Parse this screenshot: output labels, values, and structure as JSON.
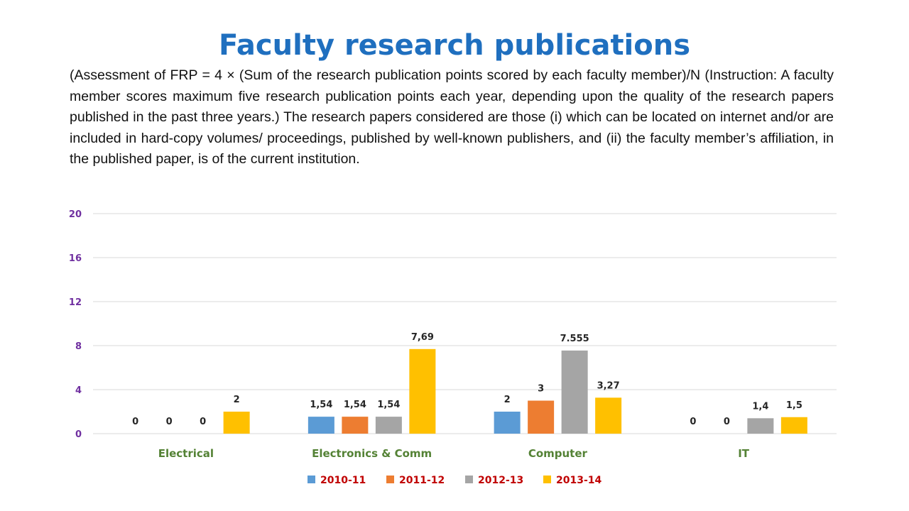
{
  "slide": {
    "title": "Faculty research publications",
    "description": "(Assessment of FRP = 4 × (Sum of the research publication points scored by each faculty member)/N (Instruction: A faculty member scores maximum five research publication points each year, depending upon the quality of the research papers published in the past three years.) The research papers considered are those (i) which can be located on internet and/or are included in hard-copy volumes/ proceedings, published by well-known publishers, and (ii) the faculty member’s affiliation, in the published paper, is of the current institution."
  },
  "chart_data": {
    "type": "bar",
    "title": "",
    "xlabel": "",
    "ylabel": "",
    "ylim": [
      0,
      20
    ],
    "yticks": [
      "0",
      "4",
      "8",
      "12",
      "16",
      "20"
    ],
    "grid": true,
    "legend_position": "bottom",
    "categories": [
      "Electrical",
      "Electronics & Comm",
      "Computer",
      "IT"
    ],
    "series": [
      {
        "name": "2010-11",
        "color": "#5b9bd5",
        "values": [
          0,
          1.54,
          2,
          0
        ],
        "labels": [
          "0",
          "1,54",
          "2",
          "0"
        ]
      },
      {
        "name": "2011-12",
        "color": "#ed7d31",
        "values": [
          0,
          1.54,
          3,
          0
        ],
        "labels": [
          "0",
          "1,54",
          "3",
          "0"
        ]
      },
      {
        "name": "2012-13",
        "color": "#a5a5a5",
        "values": [
          0,
          1.54,
          7.555,
          1.4
        ],
        "labels": [
          "0",
          "1,54",
          "7.555",
          "1,4"
        ]
      },
      {
        "name": "2013-14",
        "color": "#ffc000",
        "values": [
          2,
          7.69,
          3.27,
          1.5
        ],
        "labels": [
          "2",
          "7,69",
          "3,27",
          "1,5"
        ]
      }
    ],
    "colors": {
      "ytick": "#7030a0",
      "category": "#548235",
      "legend_text": "#c00000",
      "grid": "#d9d9d9",
      "data_label": "#262626"
    }
  }
}
